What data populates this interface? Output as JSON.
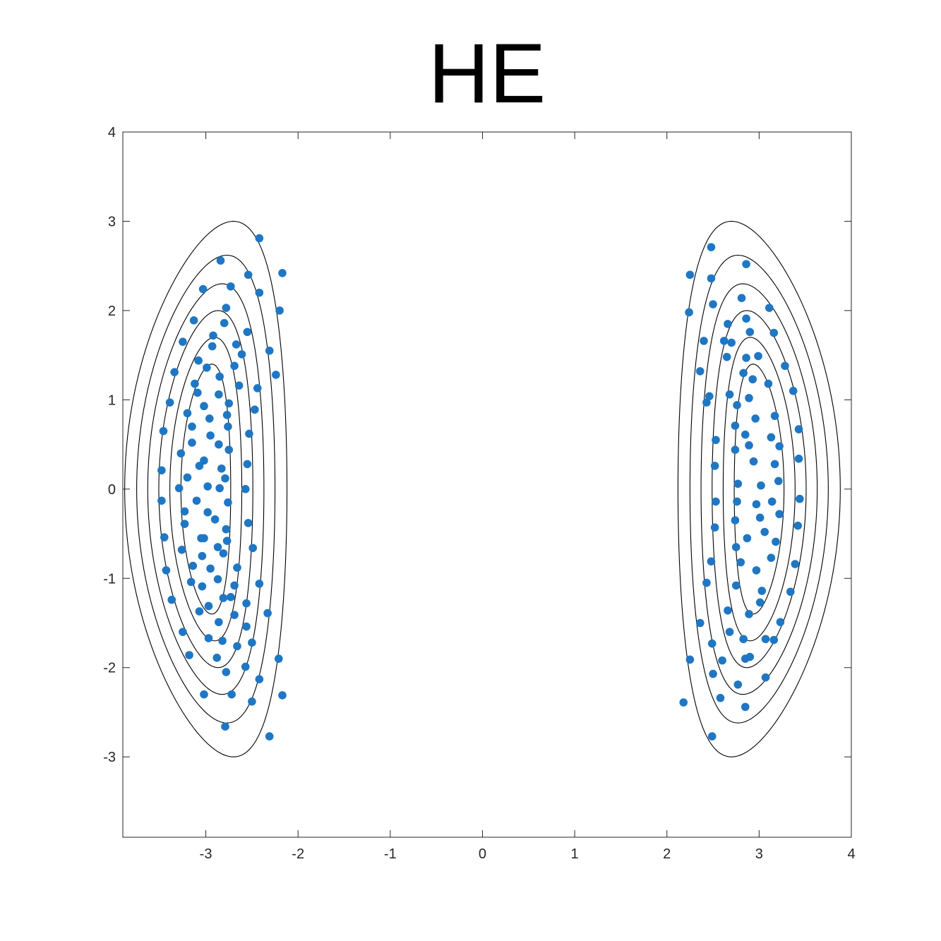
{
  "chart_data": {
    "type": "scatter",
    "title": "HE",
    "xlabel": "",
    "ylabel": "",
    "xlim": [
      -3.9,
      4
    ],
    "ylim": [
      -3.9,
      4
    ],
    "x_ticks": [
      -3,
      -2,
      -1,
      0,
      1,
      2,
      3,
      4
    ],
    "y_ticks": [
      -3,
      -2,
      -1,
      0,
      1,
      2,
      3,
      4
    ],
    "grid": false,
    "box": true,
    "marker_color": "#1f77c4",
    "contour_color": "#000000",
    "contours": {
      "shape": "banana",
      "centers_x": [
        -3.0,
        3.0
      ],
      "level_widths": [
        0.88,
        0.75,
        0.63,
        0.51,
        0.39,
        0.27
      ],
      "level_heights": [
        3.0,
        2.62,
        2.3,
        2.0,
        1.7,
        1.4
      ],
      "center_bend": 0.3
    },
    "series": [
      {
        "points": [
          [
            -2.42,
            2.81
          ],
          [
            -2.17,
            2.42
          ],
          [
            -2.2,
            2.0
          ],
          [
            -2.54,
            2.4
          ],
          [
            -2.42,
            2.2
          ],
          [
            -2.84,
            2.56
          ],
          [
            -3.03,
            2.24
          ],
          [
            -3.13,
            1.89
          ],
          [
            -3.25,
            1.65
          ],
          [
            -3.34,
            1.31
          ],
          [
            -2.73,
            2.27
          ],
          [
            -2.78,
            2.03
          ],
          [
            -2.8,
            1.86
          ],
          [
            -2.55,
            1.76
          ],
          [
            -2.61,
            1.51
          ],
          [
            -2.67,
            1.62
          ],
          [
            -2.31,
            1.55
          ],
          [
            -2.69,
            1.38
          ],
          [
            -2.93,
            1.6
          ],
          [
            -2.92,
            1.72
          ],
          [
            -3.08,
            1.44
          ],
          [
            -2.99,
            1.36
          ],
          [
            -3.12,
            1.18
          ],
          [
            -3.09,
            1.08
          ],
          [
            -2.85,
            1.26
          ],
          [
            -2.24,
            1.28
          ],
          [
            -2.64,
            1.16
          ],
          [
            -2.44,
            1.13
          ],
          [
            -2.86,
            1.06
          ],
          [
            -3.39,
            0.97
          ],
          [
            -3.2,
            0.85
          ],
          [
            -3.02,
            0.93
          ],
          [
            -2.96,
            0.79
          ],
          [
            -2.75,
            0.96
          ],
          [
            -2.77,
            0.83
          ],
          [
            -2.47,
            0.89
          ],
          [
            -3.15,
            0.7
          ],
          [
            -2.76,
            0.7
          ],
          [
            -3.46,
            0.65
          ],
          [
            -2.53,
            0.62
          ],
          [
            -2.95,
            0.6
          ],
          [
            -3.15,
            0.52
          ],
          [
            -2.86,
            0.5
          ],
          [
            -2.75,
            0.44
          ],
          [
            -3.27,
            0.4
          ],
          [
            -3.02,
            0.32
          ],
          [
            -3.07,
            0.26
          ],
          [
            -2.55,
            0.28
          ],
          [
            -2.83,
            0.23
          ],
          [
            -3.48,
            0.21
          ],
          [
            -2.79,
            0.12
          ],
          [
            -3.2,
            0.13
          ],
          [
            -2.98,
            0.03
          ],
          [
            -3.29,
            0.01
          ],
          [
            -2.85,
            0.01
          ],
          [
            -2.57,
            0.0
          ],
          [
            -3.1,
            -0.13
          ],
          [
            -2.76,
            -0.15
          ],
          [
            -3.48,
            -0.13
          ],
          [
            -3.23,
            -0.25
          ],
          [
            -2.98,
            -0.26
          ],
          [
            -2.9,
            -0.34
          ],
          [
            -3.23,
            -0.39
          ],
          [
            -2.54,
            -0.38
          ],
          [
            -2.78,
            -0.45
          ],
          [
            -3.02,
            -0.55
          ],
          [
            -3.05,
            -0.55
          ],
          [
            -3.45,
            -0.54
          ],
          [
            -2.77,
            -0.58
          ],
          [
            -2.49,
            -0.66
          ],
          [
            -3.26,
            -0.68
          ],
          [
            -2.87,
            -0.65
          ],
          [
            -3.04,
            -0.75
          ],
          [
            -2.81,
            -0.72
          ],
          [
            -3.14,
            -0.86
          ],
          [
            -2.95,
            -0.89
          ],
          [
            -2.66,
            -0.88
          ],
          [
            -3.43,
            -0.91
          ],
          [
            -3.16,
            -1.04
          ],
          [
            -2.87,
            -1.01
          ],
          [
            -2.42,
            -1.06
          ],
          [
            -3.04,
            -1.09
          ],
          [
            -2.69,
            -1.08
          ],
          [
            -2.81,
            -1.22
          ],
          [
            -3.37,
            -1.24
          ],
          [
            -2.56,
            -1.28
          ],
          [
            -2.97,
            -1.31
          ],
          [
            -3.07,
            -1.37
          ],
          [
            -2.33,
            -1.39
          ],
          [
            -2.69,
            -1.41
          ],
          [
            -2.86,
            -1.49
          ],
          [
            -2.56,
            -1.54
          ],
          [
            -3.25,
            -1.6
          ],
          [
            -2.97,
            -1.67
          ],
          [
            -2.82,
            -1.7
          ],
          [
            -2.5,
            -1.72
          ],
          [
            -2.66,
            -1.76
          ],
          [
            -3.18,
            -1.86
          ],
          [
            -2.88,
            -1.89
          ],
          [
            -2.21,
            -1.9
          ],
          [
            -2.57,
            -1.99
          ],
          [
            -2.78,
            -2.05
          ],
          [
            -2.42,
            -2.13
          ],
          [
            -3.02,
            -2.3
          ],
          [
            -2.72,
            -2.3
          ],
          [
            -2.17,
            -2.31
          ],
          [
            -2.5,
            -2.38
          ],
          [
            -2.79,
            -2.66
          ],
          [
            -2.31,
            -2.77
          ],
          [
            -2.73,
            -1.21
          ],
          [
            2.48,
            2.71
          ],
          [
            2.25,
            2.4
          ],
          [
            2.24,
            1.98
          ],
          [
            2.48,
            2.36
          ],
          [
            2.5,
            2.07
          ],
          [
            2.86,
            2.52
          ],
          [
            2.81,
            2.14
          ],
          [
            2.66,
            1.85
          ],
          [
            2.86,
            1.91
          ],
          [
            3.11,
            2.03
          ],
          [
            2.9,
            1.76
          ],
          [
            2.62,
            1.66
          ],
          [
            2.4,
            1.66
          ],
          [
            2.7,
            1.64
          ],
          [
            2.65,
            1.48
          ],
          [
            2.86,
            1.47
          ],
          [
            2.99,
            1.49
          ],
          [
            3.16,
            1.75
          ],
          [
            3.28,
            1.38
          ],
          [
            2.93,
            1.23
          ],
          [
            2.83,
            1.3
          ],
          [
            2.36,
            1.32
          ],
          [
            3.1,
            1.18
          ],
          [
            3.37,
            1.1
          ],
          [
            2.68,
            1.06
          ],
          [
            2.46,
            1.04
          ],
          [
            2.89,
            1.02
          ],
          [
            2.43,
            0.97
          ],
          [
            3.17,
            0.82
          ],
          [
            2.76,
            0.94
          ],
          [
            2.96,
            0.79
          ],
          [
            2.74,
            0.71
          ],
          [
            3.43,
            0.67
          ],
          [
            2.53,
            0.55
          ],
          [
            2.85,
            0.61
          ],
          [
            3.13,
            0.58
          ],
          [
            3.22,
            0.48
          ],
          [
            2.74,
            0.44
          ],
          [
            2.89,
            0.49
          ],
          [
            2.52,
            0.26
          ],
          [
            2.94,
            0.31
          ],
          [
            3.17,
            0.28
          ],
          [
            3.43,
            0.34
          ],
          [
            3.02,
            0.04
          ],
          [
            3.21,
            0.09
          ],
          [
            2.77,
            0.06
          ],
          [
            2.53,
            -0.14
          ],
          [
            2.76,
            -0.14
          ],
          [
            3.14,
            -0.14
          ],
          [
            3.44,
            -0.11
          ],
          [
            2.97,
            -0.17
          ],
          [
            3.22,
            -0.28
          ],
          [
            2.74,
            -0.35
          ],
          [
            3.01,
            -0.32
          ],
          [
            3.42,
            -0.41
          ],
          [
            2.52,
            -0.43
          ],
          [
            2.87,
            -0.55
          ],
          [
            3.06,
            -0.48
          ],
          [
            3.18,
            -0.59
          ],
          [
            2.75,
            -0.65
          ],
          [
            2.48,
            -0.81
          ],
          [
            2.8,
            -0.82
          ],
          [
            3.13,
            -0.77
          ],
          [
            2.97,
            -0.91
          ],
          [
            3.39,
            -0.84
          ],
          [
            2.43,
            -1.05
          ],
          [
            2.75,
            -1.08
          ],
          [
            3.03,
            -1.14
          ],
          [
            3.34,
            -1.15
          ],
          [
            2.66,
            -1.36
          ],
          [
            3.01,
            -1.27
          ],
          [
            2.36,
            -1.5
          ],
          [
            2.89,
            -1.4
          ],
          [
            3.23,
            -1.49
          ],
          [
            2.68,
            -1.6
          ],
          [
            3.16,
            -1.69
          ],
          [
            2.83,
            -1.68
          ],
          [
            2.49,
            -1.73
          ],
          [
            2.9,
            -1.88
          ],
          [
            2.6,
            -1.92
          ],
          [
            2.25,
            -1.91
          ],
          [
            2.85,
            -1.9
          ],
          [
            2.5,
            -2.07
          ],
          [
            3.07,
            -2.11
          ],
          [
            2.77,
            -2.19
          ],
          [
            2.58,
            -2.34
          ],
          [
            2.18,
            -2.39
          ],
          [
            2.85,
            -2.44
          ],
          [
            2.49,
            -2.77
          ],
          [
            3.07,
            -1.68
          ]
        ]
      }
    ]
  }
}
